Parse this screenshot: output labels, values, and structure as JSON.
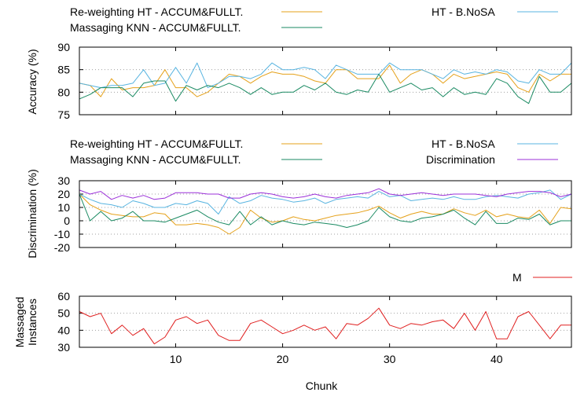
{
  "chart_data": [
    {
      "type": "line",
      "x_range": [
        1,
        47
      ],
      "ylabel": "Accuracy (%)",
      "ylim": [
        75,
        90
      ],
      "yticks": [
        75,
        80,
        85,
        90
      ],
      "grid": "horizontal dotted",
      "legend_placement": "top",
      "series": [
        {
          "name": "Re-weighting HT - ACCUM&FULLT.",
          "color": "#e5a11a",
          "values": [
            82,
            81.5,
            79,
            83,
            80.5,
            81,
            81,
            81.5,
            85,
            81,
            81,
            79,
            80,
            82,
            84,
            83.5,
            82,
            83.5,
            84.5,
            84,
            84,
            83.5,
            82.5,
            82,
            85,
            85,
            83,
            83,
            83,
            86,
            82,
            84,
            85,
            84,
            82,
            84,
            83,
            83.5,
            84,
            84.5,
            84,
            81,
            80,
            84,
            82.5,
            84,
            84
          ]
        },
        {
          "name": "HT - B.NoSA",
          "color": "#58b4e0",
          "values": [
            82,
            81.5,
            81,
            81.5,
            81.5,
            82,
            85,
            81.5,
            82,
            85.5,
            82,
            86.5,
            81,
            82,
            83.5,
            83.5,
            83,
            84,
            86.5,
            85,
            85,
            85.5,
            85,
            83,
            86,
            85,
            84,
            84,
            84,
            86.5,
            85,
            85,
            85,
            84,
            83,
            85,
            84,
            84.5,
            84,
            85,
            84.5,
            82.5,
            82,
            85,
            84,
            84,
            86.5
          ]
        },
        {
          "name": "Massaging KNN - ACCUM&FULLT.",
          "color": "#1a8a62",
          "values": [
            78.5,
            79.5,
            81,
            81,
            81,
            79,
            82,
            82.5,
            82.5,
            78,
            81.5,
            80.5,
            81.5,
            81,
            82,
            81,
            79.5,
            81,
            79.5,
            80,
            80,
            81.5,
            80.5,
            82,
            80,
            79.5,
            80.5,
            80,
            84,
            80,
            81,
            82,
            80.5,
            81,
            79,
            81,
            79.5,
            80,
            79.5,
            83,
            82,
            79,
            77.5,
            83.5,
            80,
            80,
            82
          ]
        }
      ]
    },
    {
      "type": "line",
      "x_range": [
        1,
        47
      ],
      "ylabel": "Discrimination (%)",
      "ylim": [
        -20,
        30
      ],
      "yticks": [
        -20,
        -10,
        0,
        10,
        20,
        30
      ],
      "grid": "horizontal dotted",
      "legend_placement": "top",
      "series": [
        {
          "name": "Re-weighting HT - ACCUM&FULLT.",
          "color": "#e5a11a",
          "values": [
            20,
            12,
            8,
            5,
            4,
            3,
            3,
            6,
            5,
            -3,
            -3,
            -2,
            -3,
            -5,
            -10,
            -5,
            8,
            2,
            -1,
            0,
            3,
            1,
            0,
            2,
            4,
            5,
            6,
            8,
            11,
            6,
            2,
            5,
            7,
            5,
            5,
            9,
            6,
            4,
            8,
            3,
            5,
            3,
            2,
            8,
            -2,
            10,
            9
          ]
        },
        {
          "name": "HT - B.NoSA",
          "color": "#58b4e0",
          "values": [
            20,
            16,
            13,
            12,
            10,
            15,
            13,
            10,
            10,
            13,
            12,
            15,
            13,
            5,
            18,
            13,
            15,
            19,
            17,
            16,
            14,
            15,
            17,
            13,
            16,
            17,
            18,
            17,
            22,
            18,
            19,
            15,
            16,
            17,
            16,
            18,
            16,
            16,
            18,
            19,
            18,
            17,
            20,
            21,
            23,
            16,
            20
          ]
        },
        {
          "name": "Massaging KNN - ACCUM&FULLT.",
          "color": "#1a8a62",
          "values": [
            20,
            0,
            7,
            0,
            2,
            7,
            0,
            0,
            -1,
            2,
            5,
            8,
            3,
            -1,
            -3,
            7,
            -3,
            3,
            -3,
            0,
            -2,
            -3,
            -1,
            -2,
            -3,
            -5,
            -3,
            0,
            10,
            3,
            0,
            -1,
            2,
            3,
            5,
            8,
            2,
            -3,
            7,
            -2,
            -2,
            2,
            1,
            5,
            -3,
            0,
            0
          ]
        },
        {
          "name": "Discrimination",
          "color": "#9b30d9",
          "values": [
            23,
            20,
            22,
            16,
            19,
            17,
            19,
            16,
            17,
            21,
            21,
            21,
            20,
            20,
            17,
            17,
            20,
            21,
            20,
            18,
            17,
            18,
            20,
            18,
            17,
            19,
            20,
            21,
            24,
            20,
            19,
            20,
            21,
            20,
            19,
            20,
            20,
            20,
            19,
            18,
            20,
            21,
            22,
            22,
            21,
            18,
            20
          ]
        }
      ]
    },
    {
      "type": "line",
      "x_range": [
        1,
        47
      ],
      "xlabel": "Chunk",
      "ylabel": "Massaged Instances",
      "ylim": [
        30,
        60
      ],
      "yticks": [
        30,
        40,
        50,
        60
      ],
      "xticks": [
        10,
        20,
        30,
        40
      ],
      "grid": "horizontal dotted",
      "legend_placement": "top-right",
      "series": [
        {
          "name": "M",
          "color": "#e02020",
          "values": [
            51,
            48,
            50,
            38,
            43,
            37,
            41,
            32,
            36,
            46,
            48,
            44,
            46,
            37,
            34,
            34,
            44,
            46,
            42,
            38,
            40,
            43,
            40,
            42,
            35,
            44,
            43,
            47,
            53,
            43,
            41,
            44,
            43,
            45,
            46,
            41,
            50,
            40,
            51,
            35,
            35,
            48,
            51,
            43,
            35,
            43,
            43
          ]
        }
      ]
    }
  ]
}
